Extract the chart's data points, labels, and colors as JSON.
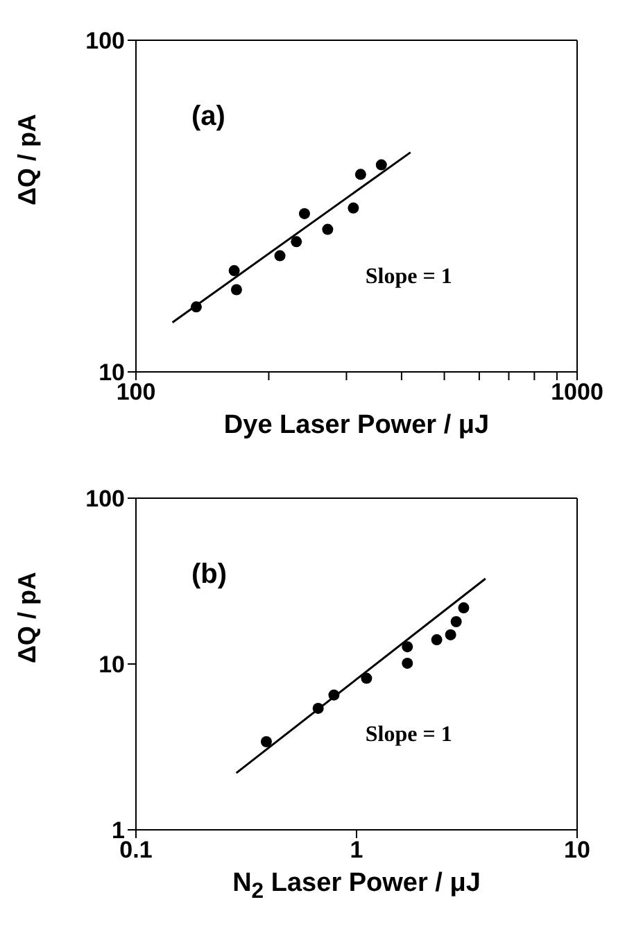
{
  "chart_data": [
    {
      "type": "scatter",
      "title": "(a)",
      "xlabel": "Dye Laser Power / μJ",
      "ylabel": "ΔQ / pA",
      "log": "xy",
      "xlim": [
        100,
        1000
      ],
      "ylim": [
        10,
        100
      ],
      "xticks": [
        100,
        {
          "value": 200,
          "label": null
        },
        {
          "value": 300,
          "label": null
        },
        {
          "value": 400,
          "label": null
        },
        {
          "value": 500,
          "label": null
        },
        {
          "value": 600,
          "label": null
        },
        {
          "value": 700,
          "label": null
        },
        {
          "value": 800,
          "label": null
        },
        {
          "value": 900,
          "label": null
        },
        1000
      ],
      "yticks": [
        10,
        100
      ],
      "marker": "circle",
      "annotations": [
        "Slope = 1"
      ],
      "series": [
        {
          "color": "#000000",
          "x": [
            137,
            167,
            169,
            212,
            231,
            241,
            272,
            311,
            323,
            360
          ],
          "values": [
            15.7,
            20.2,
            17.7,
            22.4,
            24.7,
            30.0,
            26.9,
            31.2,
            39.4,
            42.1
          ]
        },
        {
          "type": "line",
          "color": "#000000",
          "marker": "none",
          "x": [
            121,
            419
          ],
          "values": [
            14.1,
            45.9
          ]
        }
      ]
    },
    {
      "type": "scatter",
      "title": "(b)",
      "xlabel": "N$_{2}$ Laser Power / μJ",
      "ylabel": "ΔQ / pA",
      "log": "xy",
      "xlim": [
        0.1,
        10
      ],
      "ylim": [
        1,
        100
      ],
      "xticks": [
        0.1,
        1,
        10
      ],
      "yticks": [
        1,
        10,
        100
      ],
      "marker": "circle",
      "annotations": [
        "Slope = 1"
      ],
      "series": [
        {
          "color": "#000000",
          "x": [
            0.39,
            0.67,
            0.79,
            1.11,
            1.7,
            1.7,
            2.31,
            2.67,
            2.83,
            3.06
          ],
          "values": [
            3.4,
            5.4,
            6.5,
            8.2,
            12.7,
            10.1,
            14.0,
            15.0,
            18.0,
            21.8
          ]
        },
        {
          "type": "line",
          "color": "#000000",
          "marker": "none",
          "x": [
            0.285,
            3.84
          ],
          "values": [
            2.2,
            32.7
          ]
        }
      ]
    }
  ]
}
